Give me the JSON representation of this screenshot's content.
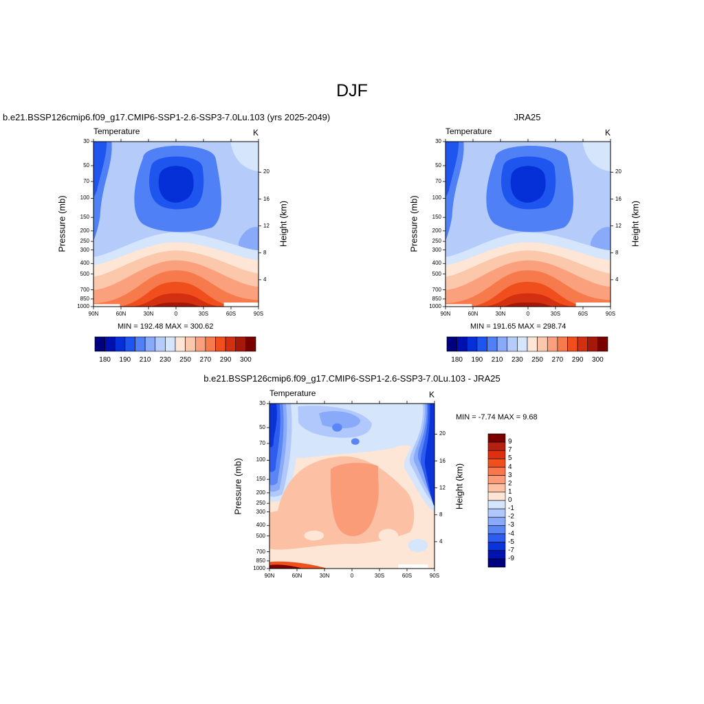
{
  "page": {
    "title": "DJF"
  },
  "panels": [
    {
      "id": "model",
      "title": "b.e21.BSSP126cmip6.f09_g17.CMIP6-SSP1-2.6-SSP3-7.0Lu.103 (yrs 2025-2049)",
      "left_label": "Temperature",
      "right_label": "K",
      "minmax": "MIN = 192.48  MAX = 300.62"
    },
    {
      "id": "obs",
      "title": "JRA25",
      "left_label": "Temperature",
      "right_label": "K",
      "minmax": "MIN = 191.65  MAX = 298.74"
    },
    {
      "id": "diff",
      "title": "b.e21.BSSP126cmip6.f09_g17.CMIP6-SSP1-2.6-SSP3-7.0Lu.103 - JRA25",
      "left_label": "Temperature",
      "right_label": "K",
      "minmax": "MIN =  -7.74  MAX =   9.68"
    }
  ],
  "axes": {
    "ylabel": "Pressure (mb)",
    "y2label": "Height (km)",
    "pressure_ticks": [
      "30",
      "50",
      "70",
      "100",
      "150",
      "200",
      "250",
      "300",
      "400",
      "500",
      "700",
      "850",
      "1000"
    ],
    "height_ticks": [
      "20",
      "16",
      "12",
      "8",
      "4"
    ],
    "x_ticks": [
      "90N",
      "60N",
      "30N",
      "0",
      "30S",
      "60S",
      "90S"
    ]
  },
  "colorbars": {
    "temperature": {
      "labels": [
        "180",
        "190",
        "210",
        "230",
        "250",
        "270",
        "290",
        "300"
      ],
      "colors": [
        "#00007f",
        "#0010b0",
        "#0530d8",
        "#1e55ee",
        "#5080f5",
        "#88aaf8",
        "#b5ccfb",
        "#d5e5fc",
        "#fde6d6",
        "#fcc8ac",
        "#fba07c",
        "#f77a4c",
        "#f04e1c",
        "#d23010",
        "#a81808",
        "#7a0000"
      ]
    },
    "difference": {
      "labels": [
        "9",
        "7",
        "5",
        "4",
        "3",
        "2",
        "1",
        "0",
        "-1",
        "-2",
        "-3",
        "-4",
        "-5",
        "-7",
        "-9"
      ],
      "colors": [
        "#7a0000",
        "#b52010",
        "#dd3010",
        "#f0501c",
        "#f8784a",
        "#fb9c78",
        "#fcc0a4",
        "#fde6d6",
        "#d5e5fc",
        "#b0c8fb",
        "#88aaf8",
        "#5a86f5",
        "#2e5cee",
        "#0a34d8",
        "#0012b0",
        "#00007f"
      ]
    }
  },
  "chart_data": [
    {
      "type": "heatmap",
      "title": "b.e21.BSSP126cmip6.f09_g17.CMIP6-SSP1-2.6-SSP3-7.0Lu.103 (yrs 2025-2049)",
      "variable": "Temperature",
      "units": "K",
      "xlabel": "",
      "ylabel": "Pressure (mb)",
      "y2label": "Height (km)",
      "x_ticks": [
        "90N",
        "60N",
        "30N",
        "0",
        "30S",
        "60S",
        "90S"
      ],
      "ylim": [
        1000,
        30
      ],
      "y_scale": "log",
      "min": 192.48,
      "max": 300.62,
      "levels": [
        180,
        185,
        190,
        200,
        210,
        220,
        230,
        240,
        250,
        260,
        270,
        280,
        290,
        295,
        300
      ]
    },
    {
      "type": "heatmap",
      "title": "JRA25",
      "variable": "Temperature",
      "units": "K",
      "xlabel": "",
      "ylabel": "Pressure (mb)",
      "y2label": "Height (km)",
      "x_ticks": [
        "90N",
        "60N",
        "30N",
        "0",
        "30S",
        "60S",
        "90S"
      ],
      "ylim": [
        1000,
        30
      ],
      "y_scale": "log",
      "min": 191.65,
      "max": 298.74,
      "levels": [
        180,
        185,
        190,
        200,
        210,
        220,
        230,
        240,
        250,
        260,
        270,
        280,
        290,
        295,
        300
      ]
    },
    {
      "type": "heatmap",
      "title": "b.e21.BSSP126cmip6.f09_g17.CMIP6-SSP1-2.6-SSP3-7.0Lu.103 - JRA25",
      "variable": "Temperature",
      "units": "K",
      "xlabel": "",
      "ylabel": "Pressure (mb)",
      "y2label": "Height (km)",
      "x_ticks": [
        "90N",
        "60N",
        "30N",
        "0",
        "30S",
        "60S",
        "90S"
      ],
      "ylim": [
        1000,
        30
      ],
      "y_scale": "log",
      "min": -7.74,
      "max": 9.68,
      "levels": [
        -9,
        -7,
        -5,
        -4,
        -3,
        -2,
        -1,
        0,
        1,
        2,
        3,
        4,
        5,
        7,
        9
      ]
    }
  ]
}
